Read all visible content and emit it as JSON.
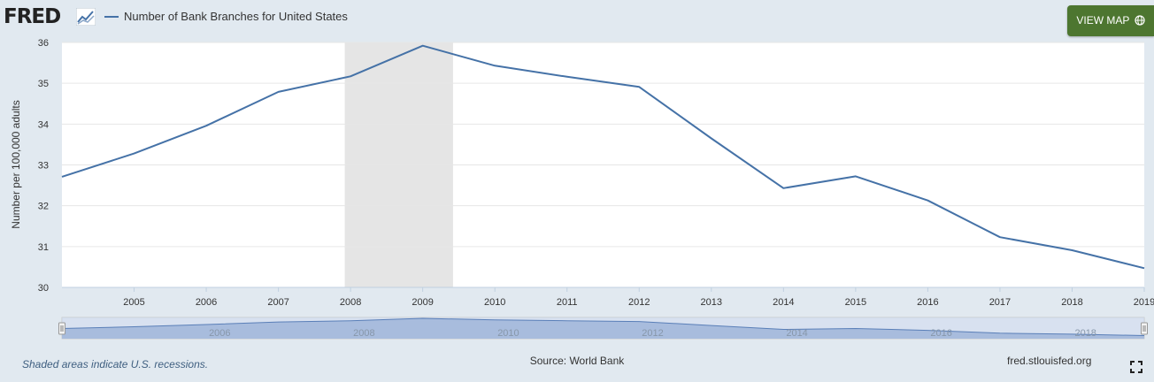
{
  "header": {
    "logo_text": "FRED",
    "legend_label": "Number of Bank Branches for United States",
    "view_map_label": "VIEW MAP"
  },
  "footer": {
    "recession_note": "Shaded areas indicate U.S. recessions.",
    "source": "Source: World Bank",
    "site": "fred.stlouisfed.org"
  },
  "colors": {
    "series": "#4572a7",
    "recession": "#e5e5e5",
    "navigator": "#a3b8da",
    "button": "#4d7630"
  },
  "icons": [
    "chart-trend-icon",
    "globe-icon",
    "fullscreen-icon"
  ],
  "chart_data": {
    "type": "line",
    "ylabel": "Number per 100,000 adults",
    "xlabel": "",
    "ylim": [
      30,
      36
    ],
    "xlim": [
      2004,
      2019
    ],
    "y_ticks": [
      30,
      31,
      32,
      33,
      34,
      35,
      36
    ],
    "x_ticks": [
      2005,
      2006,
      2007,
      2008,
      2009,
      2010,
      2011,
      2012,
      2013,
      2014,
      2015,
      2016,
      2017,
      2018,
      2019
    ],
    "navigator_labels": [
      "2006",
      "2008",
      "2010",
      "2012",
      "2014",
      "2016",
      "2018"
    ],
    "recessions": [
      [
        2007.92,
        2009.42
      ]
    ],
    "grid": true,
    "series": [
      {
        "name": "Number of Bank Branches for United States",
        "x": [
          2004,
          2005,
          2006,
          2007,
          2008,
          2009,
          2010,
          2011,
          2012,
          2013,
          2014,
          2015,
          2016,
          2017,
          2018,
          2019
        ],
        "values": [
          32.71,
          33.28,
          33.96,
          34.79,
          35.17,
          35.92,
          35.43,
          35.16,
          34.91,
          33.65,
          32.43,
          32.72,
          32.13,
          31.23,
          30.91,
          30.47
        ]
      }
    ]
  }
}
